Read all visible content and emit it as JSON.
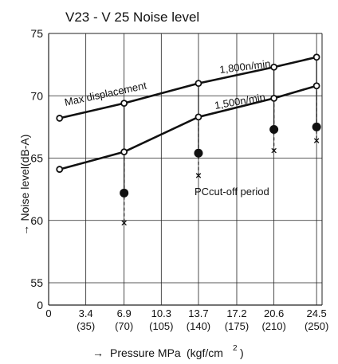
{
  "chart_data": {
    "type": "line",
    "title": "V23 - V 25 Noise level",
    "ylabel": "Noise level(dB-A)",
    "xlabel": "Pressure MPa",
    "xlabel_unit": "(kgf/cm",
    "xlabel_unit_exp": "2",
    "xlabel_unit_close": ")",
    "xlim": [
      0,
      25
    ],
    "ylim": [
      50,
      75
    ],
    "y_ticks": [
      "0",
      "55",
      "60",
      "65",
      "70",
      "75"
    ],
    "y_break": true,
    "x_ticks": [
      {
        "mpa": "3.4",
        "kgf": "(35)"
      },
      {
        "mpa": "6.9",
        "kgf": "(70)"
      },
      {
        "mpa": "10.3",
        "kgf": "(105)"
      },
      {
        "mpa": "13.7",
        "kgf": "(140)"
      },
      {
        "mpa": "17.2",
        "kgf": "(175)"
      },
      {
        "mpa": "20.6",
        "kgf": "(210)"
      },
      {
        "mpa": "24.5",
        "kgf": "(250)"
      }
    ],
    "grid": true,
    "series": [
      {
        "name": "1,800n/min",
        "x": [
          1,
          6.9,
          13.7,
          20.6,
          24.5
        ],
        "y": [
          68.2,
          69.4,
          71.0,
          72.3,
          73.1
        ]
      },
      {
        "name": "1,500n/min",
        "x": [
          1,
          6.9,
          13.7,
          20.6,
          24.5
        ],
        "y": [
          64.1,
          65.5,
          68.3,
          69.8,
          70.8
        ]
      }
    ],
    "pc_cutoff_points": [
      {
        "x": 6.9,
        "y": 62.2
      },
      {
        "x": 13.7,
        "y": 65.4
      },
      {
        "x": 20.6,
        "y": 67.3
      },
      {
        "x": 24.5,
        "y": 67.5
      }
    ],
    "x_marks": [
      {
        "x": 6.9,
        "y": 59.8
      },
      {
        "x": 13.7,
        "y": 63.6
      },
      {
        "x": 20.6,
        "y": 65.6
      },
      {
        "x": 24.5,
        "y": 66.4
      }
    ],
    "annotations": {
      "max_displacement": "Max displacement",
      "pc_cutoff": "PCcut-off period",
      "arrow": "→"
    },
    "colors": {
      "line": "#111111",
      "grid": "#222222",
      "background": "#ffffff"
    }
  }
}
